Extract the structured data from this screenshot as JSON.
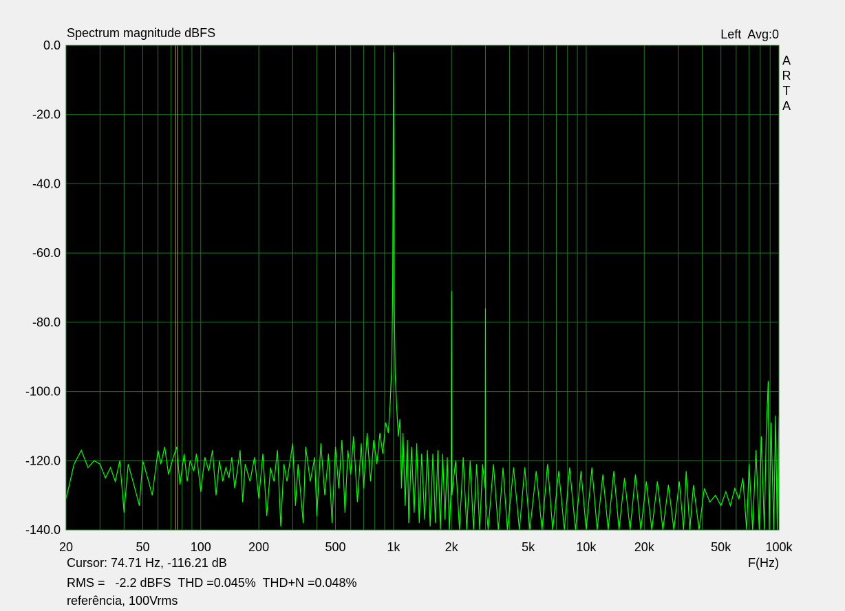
{
  "chart_data": {
    "type": "line",
    "title": "Spectrum magnitude dBFS",
    "channel": "Left  Avg:0",
    "brand": "ARTA",
    "xlabel": "F(Hz)",
    "xscale": "log",
    "xlim": [
      20,
      100000
    ],
    "xticks": [
      20,
      50,
      100,
      200,
      500,
      {
        "value": 1000,
        "label": "1k"
      },
      {
        "value": 2000,
        "label": "2k"
      },
      {
        "value": 5000,
        "label": "5k"
      },
      {
        "value": 10000,
        "label": "10k"
      },
      {
        "value": 20000,
        "label": "20k"
      },
      {
        "value": 50000,
        "label": "50k"
      },
      {
        "value": 100000,
        "label": "100k"
      }
    ],
    "xgrid_minor": [
      30,
      40,
      60,
      70,
      80,
      90,
      300,
      400,
      600,
      700,
      800,
      900,
      3000,
      4000,
      6000,
      7000,
      8000,
      9000,
      30000,
      40000,
      60000,
      70000,
      80000,
      90000
    ],
    "ylim": [
      -140,
      0
    ],
    "yticks": [
      {
        "value": 0,
        "label": "0.0"
      },
      {
        "value": -20,
        "label": "-20.0"
      },
      {
        "value": -40,
        "label": "-40.0"
      },
      {
        "value": -60,
        "label": "-60.0"
      },
      {
        "value": -80,
        "label": "-80.0"
      },
      {
        "value": -100,
        "label": "-100.0"
      },
      {
        "value": -120,
        "label": "-120.0"
      },
      {
        "value": -140,
        "label": "-140.0"
      }
    ],
    "grid": true,
    "grid_color": "#1f7a1f",
    "background": "#000000",
    "cursor": {
      "x": 74.71,
      "color": "#c8a000",
      "text": "Cursor: 74.71 Hz, -116.21 dB"
    },
    "stats": {
      "text": "RMS =   -2.2 dBFS  THD =0.045%  THD+N =0.048%",
      "color": "#c00000"
    },
    "note": "referência, 100Vrms",
    "x": [
      20,
      22,
      24,
      26,
      28,
      30,
      32,
      34,
      36,
      38,
      40,
      42,
      45,
      48,
      50,
      53,
      56,
      60,
      62,
      65,
      68,
      72,
      75,
      78,
      82,
      85,
      88,
      92,
      95,
      100,
      105,
      110,
      115,
      120,
      125,
      130,
      135,
      140,
      145,
      150,
      160,
      165,
      170,
      180,
      190,
      200,
      210,
      220,
      230,
      240,
      250,
      260,
      270,
      280,
      300,
      310,
      320,
      340,
      350,
      370,
      390,
      400,
      420,
      440,
      460,
      480,
      500,
      520,
      540,
      560,
      580,
      600,
      620,
      650,
      680,
      700,
      730,
      760,
      790,
      820,
      850,
      880,
      910,
      940,
      960,
      980,
      990,
      995,
      1000,
      1005,
      1010,
      1020,
      1040,
      1060,
      1080,
      1100,
      1120,
      1150,
      1180,
      1200,
      1240,
      1280,
      1320,
      1360,
      1400,
      1450,
      1500,
      1550,
      1600,
      1650,
      1700,
      1750,
      1800,
      1850,
      1900,
      1950,
      1990,
      2000,
      2010,
      2100,
      2200,
      2300,
      2400,
      2500,
      2600,
      2700,
      2800,
      2900,
      2990,
      3000,
      3010,
      3100,
      3300,
      3500,
      3700,
      3900,
      4200,
      4500,
      4800,
      5100,
      5500,
      5900,
      6300,
      6700,
      7200,
      7700,
      8200,
      8800,
      9400,
      10000,
      10700,
      11400,
      12200,
      13000,
      13900,
      14800,
      15800,
      16900,
      18000,
      19200,
      20500,
      21900,
      23400,
      25000,
      26700,
      28500,
      30400,
      32000,
      33000,
      34500,
      36000,
      38500,
      41000,
      43800,
      46800,
      50000,
      53000,
      56000,
      59000,
      62000,
      65000,
      68000,
      70000,
      73000,
      76000,
      79000,
      81000,
      84000,
      86000,
      88000,
      89000,
      91000,
      94000,
      96000,
      98000,
      100000
    ],
    "series": [
      {
        "color": "#00ff00",
        "values": [
          -131,
          -121,
          -117,
          -122,
          -120,
          -121,
          -125,
          -122,
          -126,
          -120,
          -135,
          -121,
          -127,
          -133,
          -120,
          -125,
          -130,
          -117,
          -121,
          -116,
          -124,
          -119,
          -116,
          -127,
          -118,
          -126,
          -120,
          -123,
          -118,
          -129,
          -119,
          -123,
          -117,
          -130,
          -120,
          -126,
          -122,
          -125,
          -119,
          -128,
          -117,
          -132,
          -121,
          -126,
          -119,
          -131,
          -118,
          -136,
          -122,
          -126,
          -117,
          -139,
          -121,
          -126,
          -115,
          -133,
          -121,
          -138,
          -116,
          -126,
          -119,
          -136,
          -115,
          -130,
          -118,
          -138,
          -116,
          -128,
          -114,
          -135,
          -117,
          -124,
          -113,
          -132,
          -115,
          -128,
          -112,
          -126,
          -114,
          -121,
          -112,
          -118,
          -109,
          -112,
          -104,
          -92,
          -70,
          -40,
          -2,
          -40,
          -75,
          -95,
          -105,
          -113,
          -108,
          -128,
          -112,
          -133,
          -114,
          -138,
          -116,
          -135,
          -115,
          -138,
          -118,
          -137,
          -117,
          -139,
          -118,
          -138,
          -117,
          -140,
          -118,
          -137,
          -119,
          -140,
          -128,
          -71,
          -130,
          -120,
          -140,
          -119,
          -140,
          -120,
          -140,
          -121,
          -140,
          -121,
          -128,
          -76,
          -132,
          -140,
          -121,
          -140,
          -122,
          -140,
          -122,
          -140,
          -122,
          -140,
          -123,
          -140,
          -121,
          -140,
          -123,
          -140,
          -122,
          -140,
          -123,
          -140,
          -122,
          -140,
          -124,
          -140,
          -123,
          -140,
          -125,
          -140,
          -124,
          -140,
          -126,
          -140,
          -126,
          -140,
          -127,
          -140,
          -126,
          -140,
          -123,
          -140,
          -127,
          -140,
          -128,
          -132,
          -130,
          -133,
          -129,
          -133,
          -128,
          -131,
          -125,
          -140,
          -121,
          -140,
          -117,
          -140,
          -113,
          -140,
          -111,
          -97,
          -140,
          -109,
          -140,
          -107,
          -140,
          -107
        ]
      }
    ]
  }
}
